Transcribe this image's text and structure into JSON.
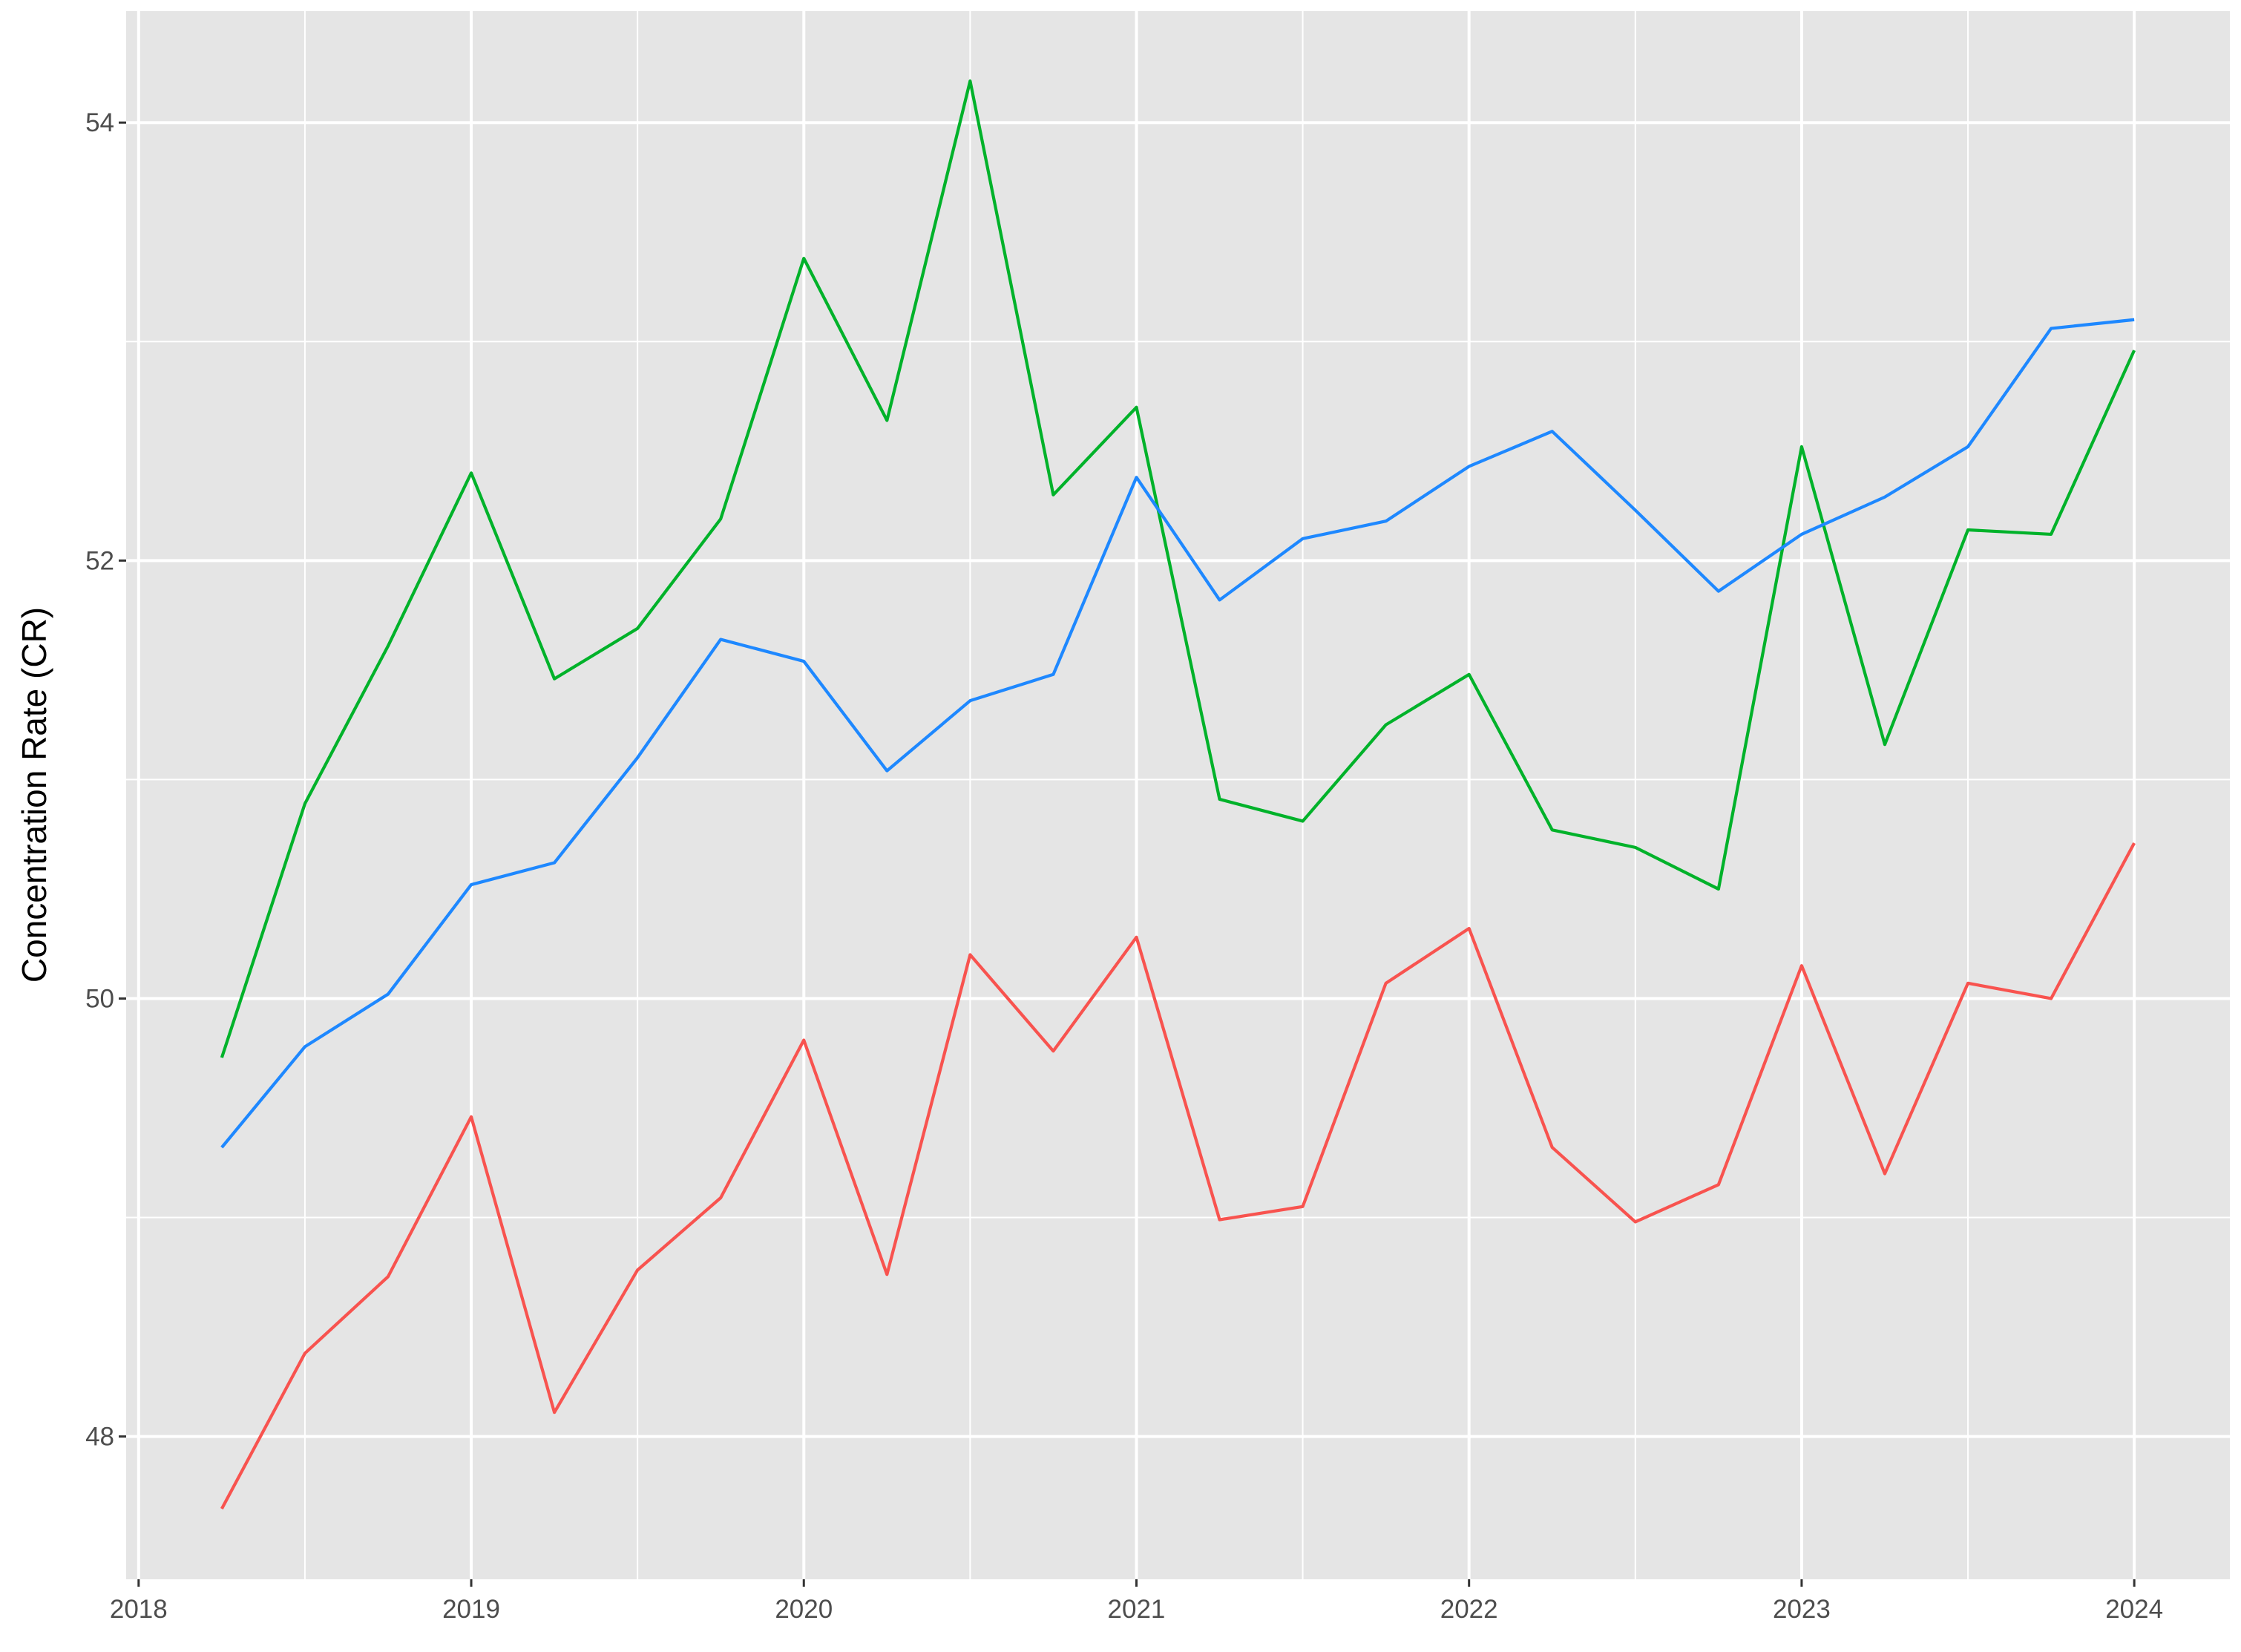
{
  "chart_data": {
    "type": "line",
    "y_label": "Concentration Rate (CR)",
    "x": [
      2018.25,
      2018.5,
      2018.75,
      2019,
      2019.25,
      2019.5,
      2019.75,
      2020,
      2020.25,
      2020.5,
      2020.75,
      2021,
      2021.25,
      2021.5,
      2021.75,
      2022,
      2022.25,
      2022.5,
      2022.75,
      2023,
      2023.25,
      2023.5,
      2023.75,
      2024
    ],
    "series": [
      {
        "color": "#F8534F",
        "values": [
          47.67,
          48.38,
          48.73,
          49.46,
          48.11,
          48.76,
          49.09,
          49.81,
          48.74,
          50.2,
          49.76,
          50.28,
          48.99,
          49.05,
          50.07,
          50.32,
          49.32,
          48.98,
          49.15,
          50.15,
          49.2,
          50.07,
          50.0,
          50.71
        ]
      },
      {
        "color": "#00B22A",
        "values": [
          49.73,
          50.89,
          51.61,
          52.4,
          51.46,
          51.69,
          52.19,
          53.38,
          52.64,
          54.19,
          52.3,
          52.7,
          50.91,
          50.81,
          51.25,
          51.48,
          50.77,
          50.69,
          50.5,
          52.52,
          51.16,
          52.14,
          52.12,
          52.96
        ]
      },
      {
        "color": "#1E88FF",
        "values": [
          49.32,
          49.78,
          50.02,
          50.52,
          50.62,
          51.1,
          51.64,
          51.54,
          51.04,
          51.36,
          51.48,
          52.38,
          51.82,
          52.1,
          52.18,
          52.43,
          52.59,
          52.23,
          51.86,
          52.12,
          52.29,
          52.52,
          53.06,
          53.1
        ]
      }
    ],
    "xlim": [
      2017.9625,
      2024.2875
    ],
    "xticks": [
      2018,
      2019,
      2020,
      2021,
      2022,
      2023,
      2024
    ],
    "ylim": [
      47.348,
      54.509
    ],
    "yticks": [
      48,
      50,
      52,
      54
    ],
    "grid": true
  }
}
